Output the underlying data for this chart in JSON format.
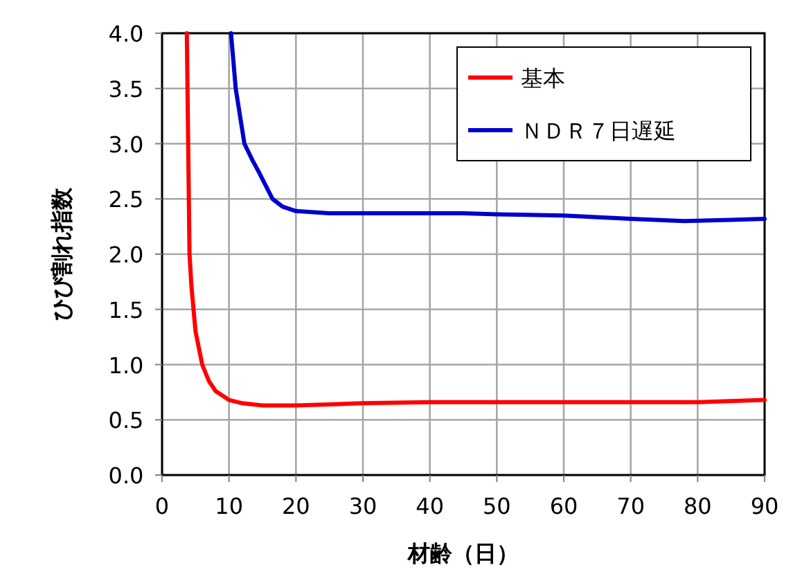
{
  "chart_data": {
    "type": "line",
    "xlabel": "材齢（日）",
    "ylabel": "ひび割れ指数",
    "xlim": [
      0,
      90
    ],
    "xticks": [
      0,
      10,
      20,
      30,
      40,
      50,
      60,
      70,
      80,
      90
    ],
    "ylim": [
      0,
      4
    ],
    "yticks": [
      {
        "value": 0,
        "label": "0.0"
      },
      {
        "value": 0.5,
        "label": "0.5"
      },
      {
        "value": 1,
        "label": "1.0"
      },
      {
        "value": 1.5,
        "label": "1.5"
      },
      {
        "value": 2,
        "label": "2.0"
      },
      {
        "value": 2.5,
        "label": "2.5"
      },
      {
        "value": 3,
        "label": "3.0"
      },
      {
        "value": 3.5,
        "label": "3.5"
      },
      {
        "value": 4,
        "label": "4.0"
      }
    ],
    "grid": true,
    "legend": "top right",
    "marker": "none",
    "line_style": "solid",
    "series": [
      {
        "name": "基本",
        "color": "#ff0000",
        "x": [
          3.7,
          3.9,
          4.1,
          4.4,
          5,
          6,
          7,
          8,
          10,
          12,
          15,
          20,
          25,
          30,
          40,
          50,
          60,
          70,
          80,
          90
        ],
        "values": [
          4.0,
          3.0,
          2.0,
          1.7,
          1.3,
          1.0,
          0.85,
          0.76,
          0.68,
          0.65,
          0.63,
          0.63,
          0.64,
          0.65,
          0.66,
          0.66,
          0.66,
          0.66,
          0.66,
          0.68
        ]
      },
      {
        "name": "ＮＤＲ７日遅延",
        "color": "#0000cc",
        "x": [
          10.3,
          11,
          12.3,
          13.5,
          14.4,
          16.5,
          18,
          20,
          25,
          30,
          40,
          45,
          50,
          60,
          70,
          78,
          85,
          90
        ],
        "values": [
          4.0,
          3.5,
          3.0,
          2.85,
          2.75,
          2.5,
          2.43,
          2.39,
          2.37,
          2.37,
          2.37,
          2.37,
          2.36,
          2.35,
          2.32,
          2.3,
          2.31,
          2.32
        ]
      }
    ]
  }
}
